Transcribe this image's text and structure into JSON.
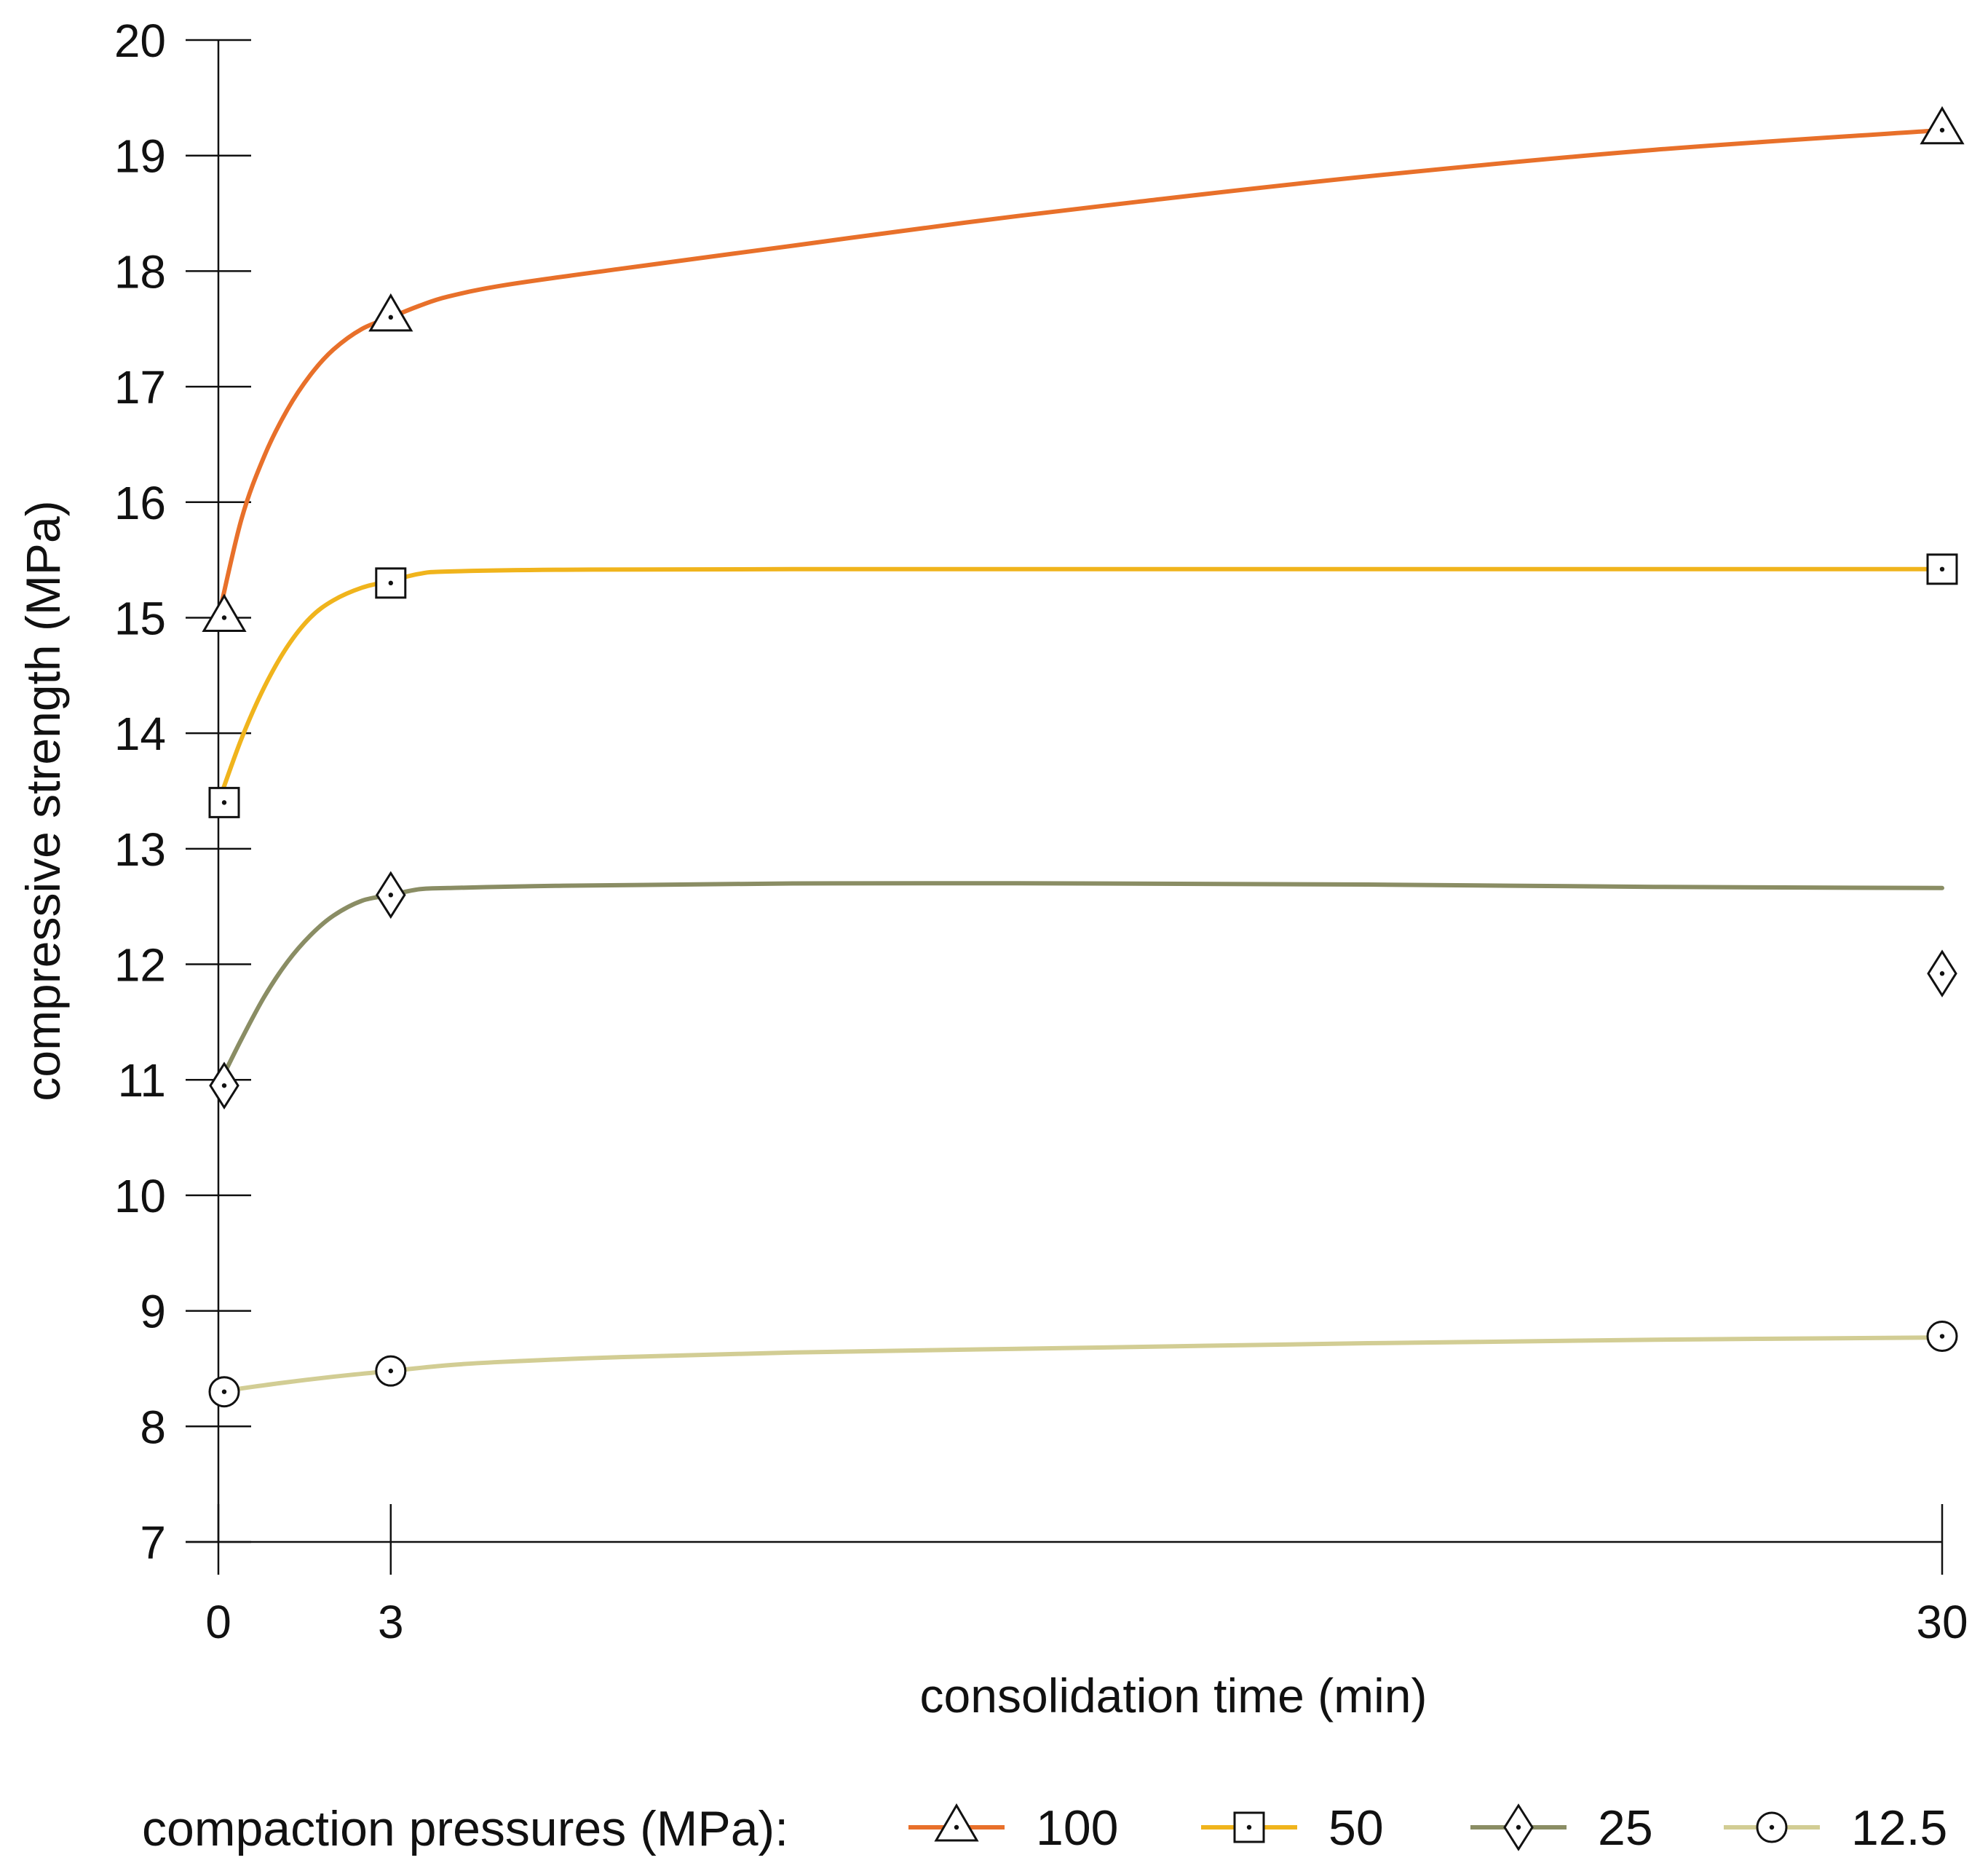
{
  "chart_data": {
    "type": "line",
    "title": "",
    "xlabel": "consolidation time (min)",
    "ylabel": "compressive strength (MPa)",
    "xlim": [
      0,
      30
    ],
    "ylim": [
      7,
      20
    ],
    "x_ticks": [
      0,
      3,
      30
    ],
    "y_ticks": [
      7,
      8,
      9,
      10,
      11,
      12,
      13,
      14,
      15,
      16,
      17,
      18,
      19,
      20
    ],
    "x": [
      0,
      3,
      30
    ],
    "legend_title": "compaction pressures (MPa):",
    "legend_position": "bottom",
    "series": [
      {
        "name": "100",
        "marker": "triangle",
        "color": "#e8702a",
        "points": [
          15.0,
          17.6,
          19.22
        ],
        "fit": [
          [
            0,
            15.0
          ],
          [
            0.4,
            15.85
          ],
          [
            0.8,
            16.4
          ],
          [
            1.2,
            16.8
          ],
          [
            1.6,
            17.1
          ],
          [
            2.0,
            17.32
          ],
          [
            2.5,
            17.5
          ],
          [
            3,
            17.6
          ],
          [
            3.5,
            17.7
          ],
          [
            4,
            17.78
          ],
          [
            5,
            17.88
          ],
          [
            7,
            18.02
          ],
          [
            10,
            18.22
          ],
          [
            13,
            18.42
          ],
          [
            16,
            18.6
          ],
          [
            20,
            18.82
          ],
          [
            25,
            19.05
          ],
          [
            30,
            19.22
          ]
        ]
      },
      {
        "name": "50",
        "marker": "square",
        "color": "#f0b41c",
        "points": [
          13.4,
          15.3,
          15.42
        ],
        "fit": [
          [
            0,
            13.4
          ],
          [
            0.4,
            13.95
          ],
          [
            0.8,
            14.4
          ],
          [
            1.2,
            14.75
          ],
          [
            1.6,
            15.0
          ],
          [
            2.0,
            15.15
          ],
          [
            2.5,
            15.26
          ],
          [
            3,
            15.32
          ],
          [
            3.5,
            15.38
          ],
          [
            4,
            15.4
          ],
          [
            6,
            15.415
          ],
          [
            10,
            15.42
          ],
          [
            20,
            15.42
          ],
          [
            30,
            15.42
          ]
        ]
      },
      {
        "name": "25",
        "marker": "diamond",
        "color": "#8a8d64",
        "points": [
          10.95,
          12.6,
          11.92
        ],
        "fit": [
          [
            0,
            10.95
          ],
          [
            0.4,
            11.35
          ],
          [
            0.8,
            11.72
          ],
          [
            1.2,
            12.02
          ],
          [
            1.6,
            12.25
          ],
          [
            2.0,
            12.42
          ],
          [
            2.5,
            12.55
          ],
          [
            3,
            12.6
          ],
          [
            3.5,
            12.65
          ],
          [
            4,
            12.66
          ],
          [
            6,
            12.68
          ],
          [
            10,
            12.7
          ],
          [
            15,
            12.7
          ],
          [
            20,
            12.69
          ],
          [
            25,
            12.67
          ],
          [
            30,
            12.66
          ]
        ]
      },
      {
        "name": "12.5",
        "marker": "circle",
        "color": "#d2cd94",
        "points": [
          8.3,
          8.48,
          8.78
        ],
        "fit": [
          [
            0,
            8.3
          ],
          [
            1,
            8.37
          ],
          [
            2,
            8.43
          ],
          [
            3,
            8.48
          ],
          [
            4,
            8.53
          ],
          [
            5,
            8.56
          ],
          [
            7,
            8.6
          ],
          [
            10,
            8.64
          ],
          [
            15,
            8.68
          ],
          [
            20,
            8.72
          ],
          [
            25,
            8.75
          ],
          [
            30,
            8.77
          ]
        ]
      }
    ]
  }
}
